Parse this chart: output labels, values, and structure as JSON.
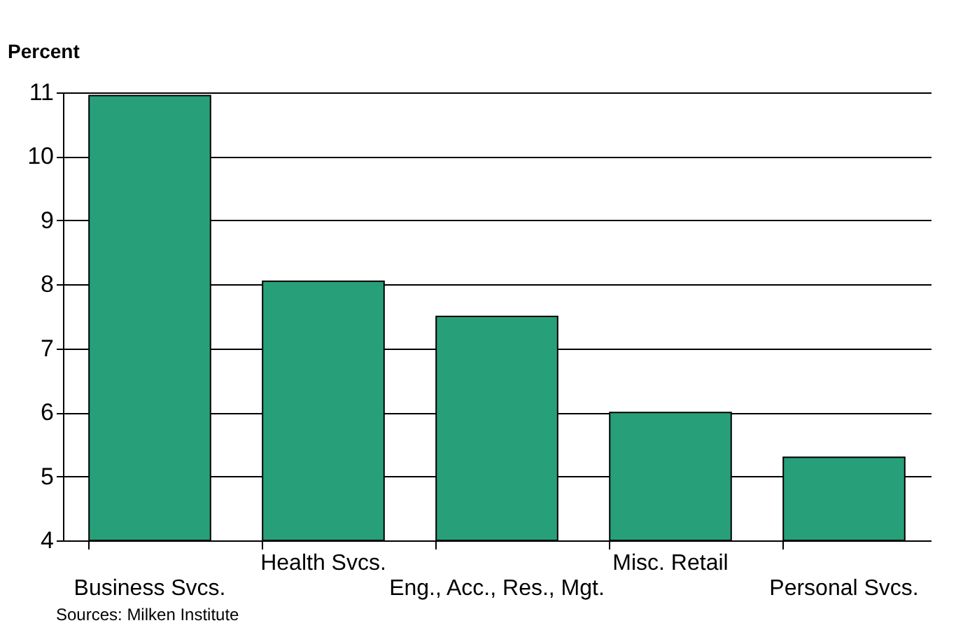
{
  "chart_data": {
    "type": "bar",
    "ylabel": "Percent",
    "categories": [
      "Business Svcs.",
      "Health Svcs.",
      "Eng., Acc., Res., Mgt.",
      "Misc. Retail",
      "Personal Svcs."
    ],
    "values": [
      10.95,
      8.05,
      7.5,
      6.0,
      5.3
    ],
    "color": "#27a07a",
    "ylim": [
      4,
      11
    ],
    "yticks": [
      4,
      5,
      6,
      7,
      8,
      9,
      10,
      11
    ],
    "grid": "y",
    "annotations": [
      "Sources: Milken Institute"
    ]
  }
}
